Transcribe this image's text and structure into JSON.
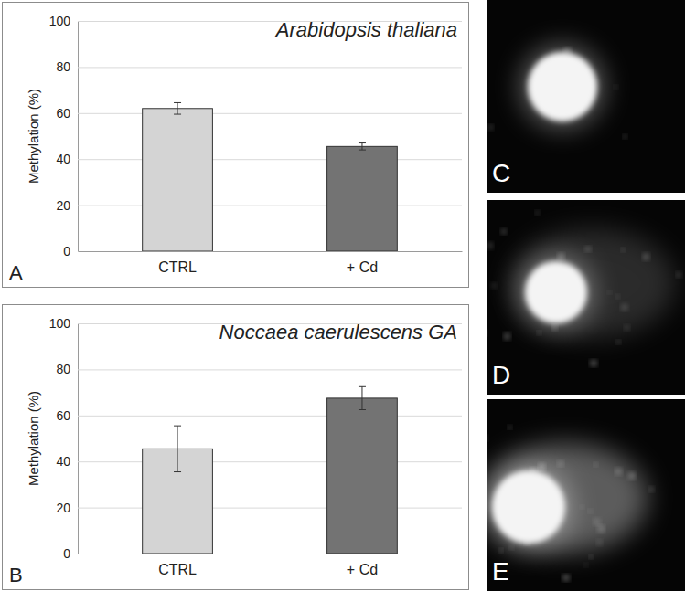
{
  "chart_data": [
    {
      "type": "bar",
      "title": "Arabidopsis thaliana",
      "y_label": "Methylation (%)",
      "annotations": [
        "A"
      ],
      "categories": [
        "CTRL",
        "+ Cd"
      ],
      "values": [
        62,
        45.5
      ],
      "errors": [
        2.5,
        1.5
      ],
      "colors": [
        "#d4d4d4",
        "#737373"
      ],
      "ylim": [
        0,
        100
      ],
      "yticks": [
        0,
        20,
        40,
        60,
        80,
        100
      ],
      "grid": true
    },
    {
      "type": "bar",
      "title": "Noccaea caerulescens GA",
      "y_label": "Methylation (%)",
      "annotations": [
        "B"
      ],
      "categories": [
        "CTRL",
        "+ Cd"
      ],
      "values": [
        45.5,
        67.5
      ],
      "errors": [
        10,
        5
      ],
      "colors": [
        "#d4d4d4",
        "#737373"
      ],
      "ylim": [
        0,
        100
      ],
      "yticks": [
        0,
        20,
        40,
        60,
        80,
        100
      ],
      "grid": true
    }
  ],
  "images": [
    {
      "label": "C"
    },
    {
      "label": "D"
    },
    {
      "label": "E"
    }
  ]
}
